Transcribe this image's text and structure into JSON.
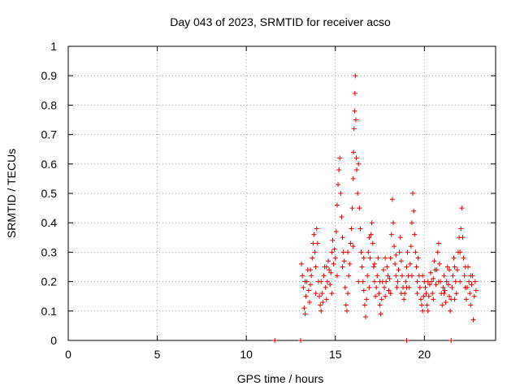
{
  "chart_data": {
    "type": "scatter",
    "title": "Day 043 of 2023, SRMTID for receiver acso",
    "xlabel": "GPS time / hours",
    "ylabel": "SRMTID / TECUs",
    "xlim": [
      0,
      24
    ],
    "ylim": [
      0,
      1
    ],
    "xticks": [
      0,
      5,
      10,
      15,
      20
    ],
    "xtick_labels": [
      "0",
      "5",
      "10",
      "15",
      "20"
    ],
    "yticks": [
      0,
      0.1,
      0.2,
      0.3,
      0.4,
      0.5,
      0.6,
      0.7,
      0.8,
      0.9,
      1
    ],
    "ytick_labels": [
      "0",
      "0.1",
      "0.2",
      "0.3",
      "0.4",
      "0.5",
      "0.6",
      "0.7",
      "0.8",
      "0.9",
      "1"
    ],
    "grid": true,
    "marker": "plus",
    "color": "#e00000",
    "series": [
      {
        "name": "SRMTID",
        "points": [
          [
            11.6,
            0.0
          ],
          [
            13.05,
            0.0
          ],
          [
            19.0,
            0.0
          ],
          [
            21.5,
            0.0
          ],
          [
            13.1,
            0.26
          ],
          [
            13.15,
            0.22
          ],
          [
            13.2,
            0.18
          ],
          [
            13.25,
            0.11
          ],
          [
            13.3,
            0.09
          ],
          [
            13.35,
            0.15
          ],
          [
            13.4,
            0.2
          ],
          [
            13.45,
            0.24
          ],
          [
            13.5,
            0.17
          ],
          [
            13.55,
            0.13
          ],
          [
            13.6,
            0.19
          ],
          [
            13.65,
            0.22
          ],
          [
            13.7,
            0.28
          ],
          [
            13.75,
            0.33
          ],
          [
            13.8,
            0.36
          ],
          [
            13.85,
            0.3
          ],
          [
            13.9,
            0.25
          ],
          [
            13.95,
            0.38
          ],
          [
            14.0,
            0.33
          ],
          [
            14.05,
            0.2
          ],
          [
            14.1,
            0.15
          ],
          [
            14.15,
            0.12
          ],
          [
            14.2,
            0.1
          ],
          [
            14.25,
            0.16
          ],
          [
            14.3,
            0.13
          ],
          [
            14.35,
            0.22
          ],
          [
            14.4,
            0.25
          ],
          [
            14.45,
            0.18
          ],
          [
            14.5,
            0.14
          ],
          [
            14.55,
            0.2
          ],
          [
            14.6,
            0.27
          ],
          [
            14.65,
            0.24
          ],
          [
            14.7,
            0.19
          ],
          [
            14.75,
            0.23
          ],
          [
            14.8,
            0.3
          ],
          [
            14.85,
            0.34
          ],
          [
            14.9,
            0.26
          ],
          [
            14.95,
            0.31
          ],
          [
            15.0,
            0.28
          ],
          [
            15.05,
            0.37
          ],
          [
            15.1,
            0.46
          ],
          [
            15.15,
            0.53
          ],
          [
            15.2,
            0.58
          ],
          [
            15.25,
            0.62
          ],
          [
            15.3,
            0.5
          ],
          [
            15.35,
            0.42
          ],
          [
            15.4,
            0.35
          ],
          [
            15.45,
            0.3
          ],
          [
            15.5,
            0.27
          ],
          [
            15.55,
            0.18
          ],
          [
            15.6,
            0.12
          ],
          [
            15.65,
            0.1
          ],
          [
            15.7,
            0.16
          ],
          [
            15.75,
            0.22
          ],
          [
            15.8,
            0.26
          ],
          [
            15.85,
            0.33
          ],
          [
            15.9,
            0.38
          ],
          [
            15.95,
            0.45
          ],
          [
            16.0,
            0.55
          ],
          [
            16.02,
            0.64
          ],
          [
            16.05,
            0.72
          ],
          [
            16.08,
            0.78
          ],
          [
            16.1,
            0.84
          ],
          [
            16.12,
            0.9
          ],
          [
            16.15,
            0.75
          ],
          [
            16.18,
            0.62
          ],
          [
            16.2,
            0.58
          ],
          [
            16.25,
            0.5
          ],
          [
            16.3,
            0.6
          ],
          [
            16.35,
            0.45
          ],
          [
            16.4,
            0.38
          ],
          [
            16.45,
            0.3
          ],
          [
            16.5,
            0.25
          ],
          [
            16.55,
            0.2
          ],
          [
            16.6,
            0.17
          ],
          [
            16.65,
            0.12
          ],
          [
            16.7,
            0.08
          ],
          [
            16.75,
            0.14
          ],
          [
            16.8,
            0.22
          ],
          [
            16.85,
            0.3
          ],
          [
            16.9,
            0.35
          ],
          [
            16.95,
            0.28
          ],
          [
            17.0,
            0.36
          ],
          [
            17.05,
            0.4
          ],
          [
            17.1,
            0.33
          ],
          [
            17.15,
            0.25
          ],
          [
            17.2,
            0.2
          ],
          [
            17.25,
            0.15
          ],
          [
            17.3,
            0.18
          ],
          [
            17.35,
            0.22
          ],
          [
            17.4,
            0.28
          ],
          [
            17.45,
            0.16
          ],
          [
            17.5,
            0.12
          ],
          [
            17.55,
            0.09
          ],
          [
            17.6,
            0.14
          ],
          [
            17.65,
            0.2
          ],
          [
            17.7,
            0.24
          ],
          [
            17.75,
            0.18
          ],
          [
            17.8,
            0.15
          ],
          [
            17.85,
            0.2
          ],
          [
            17.9,
            0.25
          ],
          [
            17.95,
            0.22
          ],
          [
            18.0,
            0.17
          ],
          [
            18.05,
            0.21
          ],
          [
            18.1,
            0.28
          ],
          [
            18.15,
            0.36
          ],
          [
            18.2,
            0.48
          ],
          [
            18.25,
            0.4
          ],
          [
            18.3,
            0.32
          ],
          [
            18.35,
            0.26
          ],
          [
            18.4,
            0.22
          ],
          [
            18.45,
            0.18
          ],
          [
            18.5,
            0.2
          ],
          [
            18.55,
            0.24
          ],
          [
            18.6,
            0.3
          ],
          [
            18.65,
            0.35
          ],
          [
            18.7,
            0.27
          ],
          [
            18.75,
            0.22
          ],
          [
            18.8,
            0.18
          ],
          [
            18.85,
            0.14
          ],
          [
            18.9,
            0.16
          ],
          [
            18.95,
            0.2
          ],
          [
            19.0,
            0.25
          ],
          [
            19.05,
            0.3
          ],
          [
            19.1,
            0.22
          ],
          [
            19.15,
            0.18
          ],
          [
            19.2,
            0.26
          ],
          [
            19.25,
            0.32
          ],
          [
            19.3,
            0.4
          ],
          [
            19.35,
            0.5
          ],
          [
            19.4,
            0.44
          ],
          [
            19.45,
            0.36
          ],
          [
            19.5,
            0.3
          ],
          [
            19.55,
            0.25
          ],
          [
            19.6,
            0.2
          ],
          [
            19.65,
            0.28
          ],
          [
            19.7,
            0.22
          ],
          [
            19.75,
            0.18
          ],
          [
            19.8,
            0.14
          ],
          [
            19.85,
            0.12
          ],
          [
            19.9,
            0.1
          ],
          [
            19.95,
            0.15
          ],
          [
            20.0,
            0.2
          ],
          [
            20.05,
            0.18
          ],
          [
            20.1,
            0.16
          ],
          [
            20.15,
            0.12
          ],
          [
            20.2,
            0.1
          ],
          [
            20.25,
            0.15
          ],
          [
            20.3,
            0.19
          ],
          [
            20.35,
            0.23
          ],
          [
            20.4,
            0.2
          ],
          [
            20.45,
            0.16
          ],
          [
            20.5,
            0.21
          ],
          [
            20.55,
            0.27
          ],
          [
            20.6,
            0.24
          ],
          [
            20.65,
            0.19
          ],
          [
            20.7,
            0.24
          ],
          [
            20.75,
            0.3
          ],
          [
            20.8,
            0.33
          ],
          [
            20.85,
            0.26
          ],
          [
            20.9,
            0.2
          ],
          [
            20.95,
            0.16
          ],
          [
            21.0,
            0.12
          ],
          [
            21.05,
            0.18
          ],
          [
            21.1,
            0.22
          ],
          [
            21.15,
            0.17
          ],
          [
            21.2,
            0.13
          ],
          [
            21.25,
            0.2
          ],
          [
            21.3,
            0.25
          ],
          [
            21.35,
            0.19
          ],
          [
            21.4,
            0.15
          ],
          [
            21.45,
            0.1
          ],
          [
            21.5,
            0.14
          ],
          [
            21.55,
            0.18
          ],
          [
            21.6,
            0.22
          ],
          [
            21.65,
            0.28
          ],
          [
            21.7,
            0.25
          ],
          [
            21.75,
            0.2
          ],
          [
            21.8,
            0.16
          ],
          [
            21.85,
            0.24
          ],
          [
            21.9,
            0.3
          ],
          [
            21.95,
            0.35
          ],
          [
            22.0,
            0.3
          ],
          [
            22.05,
            0.38
          ],
          [
            22.1,
            0.45
          ],
          [
            22.15,
            0.35
          ],
          [
            22.2,
            0.28
          ],
          [
            22.25,
            0.22
          ],
          [
            22.3,
            0.18
          ],
          [
            22.35,
            0.14
          ],
          [
            22.4,
            0.18
          ],
          [
            22.45,
            0.25
          ],
          [
            22.5,
            0.2
          ],
          [
            22.55,
            0.16
          ],
          [
            22.6,
            0.12
          ],
          [
            22.65,
            0.19
          ],
          [
            22.7,
            0.22
          ],
          [
            22.75,
            0.07
          ],
          [
            22.8,
            0.15
          ],
          [
            22.85,
            0.2
          ],
          [
            22.9,
            0.17
          ],
          [
            13.3,
            0.2
          ],
          [
            13.6,
            0.24
          ],
          [
            13.9,
            0.16
          ],
          [
            14.2,
            0.2
          ],
          [
            14.5,
            0.25
          ],
          [
            14.8,
            0.16
          ],
          [
            15.1,
            0.22
          ],
          [
            15.4,
            0.25
          ],
          [
            15.7,
            0.3
          ],
          [
            16.0,
            0.32
          ],
          [
            16.3,
            0.2
          ],
          [
            16.6,
            0.28
          ],
          [
            16.9,
            0.18
          ],
          [
            17.2,
            0.26
          ],
          [
            17.5,
            0.2
          ],
          [
            17.8,
            0.28
          ],
          [
            18.1,
            0.16
          ],
          [
            18.4,
            0.29
          ],
          [
            18.7,
            0.16
          ],
          [
            19.0,
            0.18
          ],
          [
            19.3,
            0.22
          ],
          [
            19.6,
            0.16
          ],
          [
            19.9,
            0.22
          ],
          [
            20.2,
            0.2
          ],
          [
            20.5,
            0.14
          ],
          [
            20.8,
            0.2
          ],
          [
            21.1,
            0.16
          ],
          [
            21.4,
            0.24
          ],
          [
            21.7,
            0.14
          ],
          [
            22.0,
            0.2
          ],
          [
            22.3,
            0.25
          ],
          [
            22.6,
            0.22
          ]
        ]
      }
    ]
  }
}
